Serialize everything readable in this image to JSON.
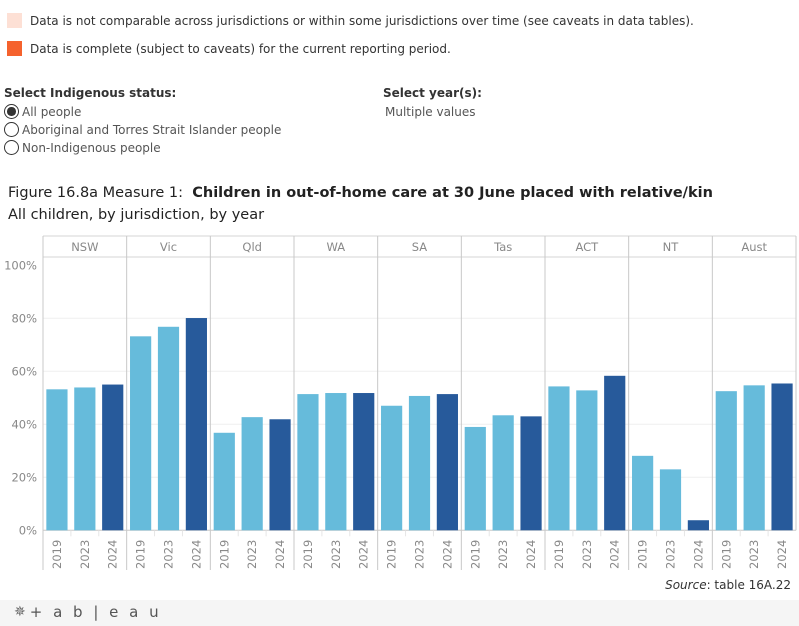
{
  "legend": {
    "items": [
      {
        "label": "Data is not comparable across jurisdictions or within some jurisdictions over time (see caveats in data tables).",
        "color": "#fde0d5"
      },
      {
        "label": "Data is complete (subject to caveats) for the current reporting period.",
        "color": "#f5622d"
      }
    ]
  },
  "filters": {
    "indigenous_status": {
      "title": "Select Indigenous status:",
      "options": [
        {
          "label": "All people",
          "selected": true
        },
        {
          "label": "Aboriginal and Torres Strait Islander people",
          "selected": false
        },
        {
          "label": "Non-Indigenous people",
          "selected": false
        }
      ]
    },
    "years": {
      "title": "Select year(s):",
      "value": "Multiple values"
    }
  },
  "figure": {
    "title_prefix": "Figure 16.8a Measure 1:  ",
    "title_bold": "Children in out-of-home care at 30 June placed with relative/kin",
    "subtitle": "All children, by jurisdiction, by year"
  },
  "chart_data": {
    "type": "bar",
    "title": "Children in out-of-home care at 30 June placed with relative/kin",
    "subtitle": "All children, by jurisdiction, by year",
    "xlabel": "",
    "ylabel": "",
    "ylim": [
      0,
      100
    ],
    "yticks": [
      "0%",
      "20%",
      "40%",
      "60%",
      "80%",
      "100%"
    ],
    "ytick_values": [
      0,
      20,
      40,
      60,
      80,
      100
    ],
    "grid": true,
    "panels": [
      "NSW",
      "Vic",
      "Qld",
      "WA",
      "SA",
      "Tas",
      "ACT",
      "NT",
      "Aust"
    ],
    "categories": [
      "2019",
      "2023",
      "2024"
    ],
    "colors": {
      "2019": "#66bbdb",
      "2023": "#66bbdb",
      "2024": "#275a9b"
    },
    "series": [
      {
        "name": "NSW",
        "values": [
          53.2,
          53.9,
          55.0
        ]
      },
      {
        "name": "Vic",
        "values": [
          73.2,
          76.8,
          80.1
        ]
      },
      {
        "name": "Qld",
        "values": [
          36.8,
          42.7,
          41.9
        ]
      },
      {
        "name": "WA",
        "values": [
          51.4,
          51.8,
          51.8
        ]
      },
      {
        "name": "SA",
        "values": [
          47.0,
          50.7,
          51.4
        ]
      },
      {
        "name": "Tas",
        "values": [
          39.0,
          43.4,
          43.0
        ]
      },
      {
        "name": "ACT",
        "values": [
          54.3,
          52.8,
          58.3
        ]
      },
      {
        "name": "NT",
        "values": [
          28.1,
          23.0,
          3.8
        ]
      },
      {
        "name": "Aust",
        "values": [
          52.5,
          54.7,
          55.4
        ]
      }
    ]
  },
  "source": {
    "label": "Source",
    "text": ": table 16A.22"
  },
  "footer": {
    "logo_text": "+ a b | e a u"
  }
}
